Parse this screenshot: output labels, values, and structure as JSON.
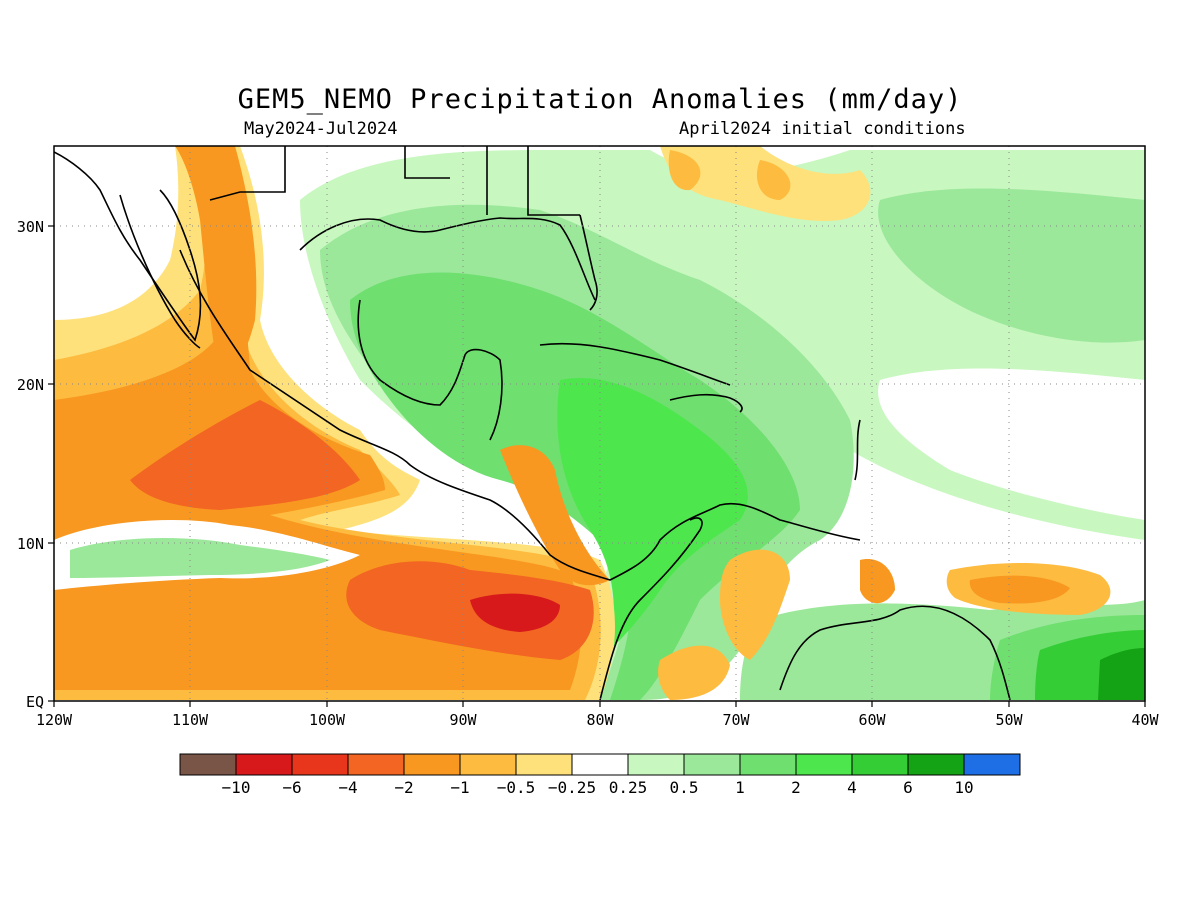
{
  "title": "GEM5_NEMO Precipitation Anomalies (mm/day)",
  "subtitle_left": "May2024-Jul2024",
  "subtitle_right": "April2024 initial conditions",
  "map": {
    "extent": {
      "lon": [
        -120,
        -40
      ],
      "lat": [
        0,
        35
      ]
    },
    "lon_ticks": [
      "120W",
      "110W",
      "100W",
      "90W",
      "80W",
      "70W",
      "60W",
      "50W",
      "40W"
    ],
    "lat_ticks": [
      "EQ",
      "10N",
      "20N",
      "30N"
    ],
    "grid": "dotted"
  },
  "legend": {
    "colors": [
      "#795548",
      "#d7191c",
      "#e8361c",
      "#f26522",
      "#f89820",
      "#fdbb40",
      "#fee17a",
      "#ffffff",
      "#c8f7c0",
      "#9be89b",
      "#6fdf6f",
      "#4de74d",
      "#35cd35",
      "#14a314",
      "#1e6fe6"
    ],
    "labels": [
      "-10",
      "-6",
      "-4",
      "-2",
      "-1",
      "-0.5",
      "-0.25",
      "0.25",
      "0.5",
      "1",
      "2",
      "4",
      "6",
      "10"
    ]
  }
}
